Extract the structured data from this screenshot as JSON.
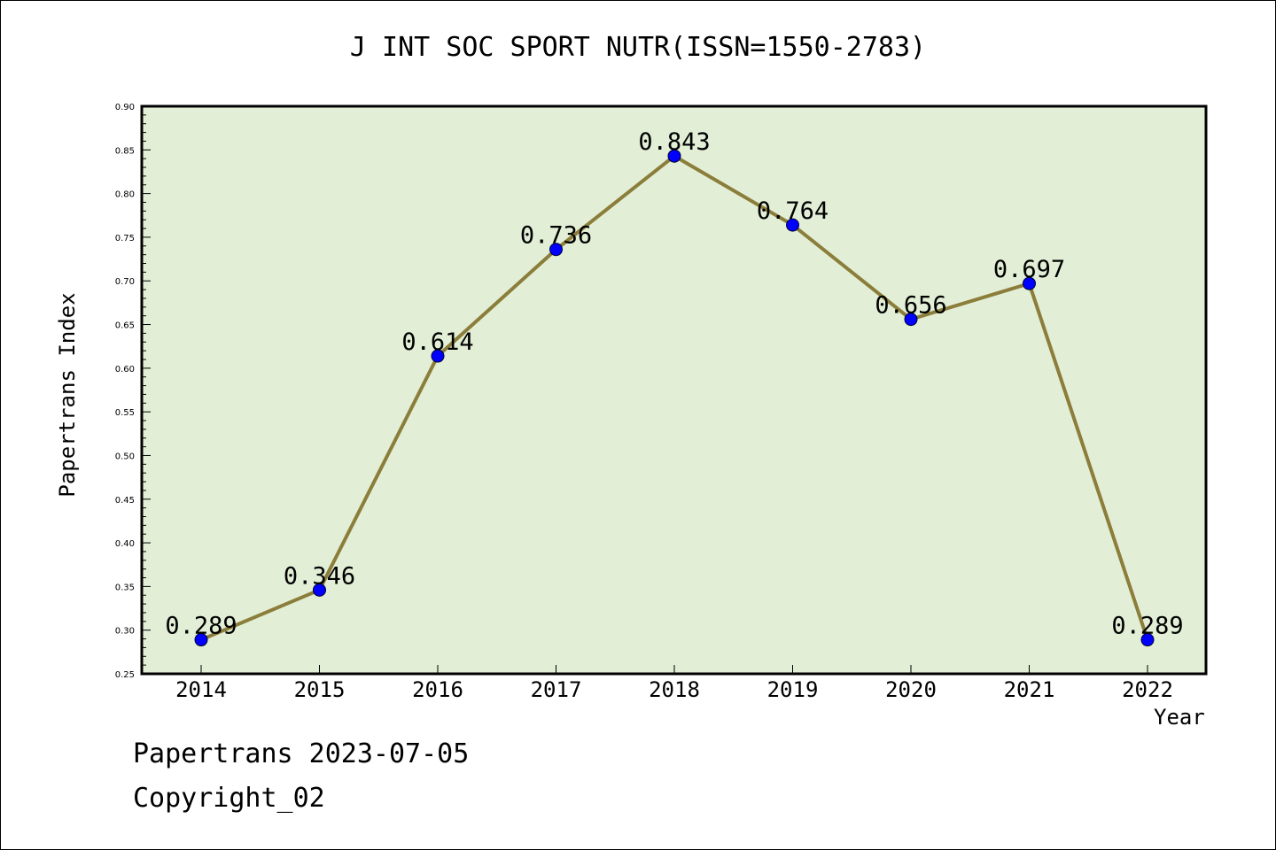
{
  "chart_data": {
    "type": "line",
    "title": "J INT SOC SPORT NUTR(ISSN=1550-2783)",
    "xlabel": "Year",
    "ylabel": "Papertrans Index",
    "categories": [
      "2014",
      "2015",
      "2016",
      "2017",
      "2018",
      "2019",
      "2020",
      "2021",
      "2022"
    ],
    "series": [
      {
        "name": "Papertrans Index",
        "values": [
          0.289,
          0.346,
          0.614,
          0.736,
          0.843,
          0.764,
          0.656,
          0.697,
          0.289
        ],
        "labels": [
          "0.289",
          "0.346",
          "0.614",
          "0.736",
          "0.843",
          "0.764",
          "0.656",
          "0.697",
          "0.289"
        ]
      }
    ],
    "ylim": [
      0.25,
      0.9
    ],
    "yticks": [
      "0.25",
      "0.30",
      "0.35",
      "0.40",
      "0.45",
      "0.50",
      "0.55",
      "0.60",
      "0.65",
      "0.70",
      "0.75",
      "0.80",
      "0.85",
      "0.90"
    ],
    "colors": {
      "background": "#e2efd6",
      "line": "#8b7d3a",
      "marker": "#0000ff"
    }
  },
  "footer": {
    "date_line": "Papertrans 2023-07-05",
    "copyright": "Copyright_02"
  }
}
